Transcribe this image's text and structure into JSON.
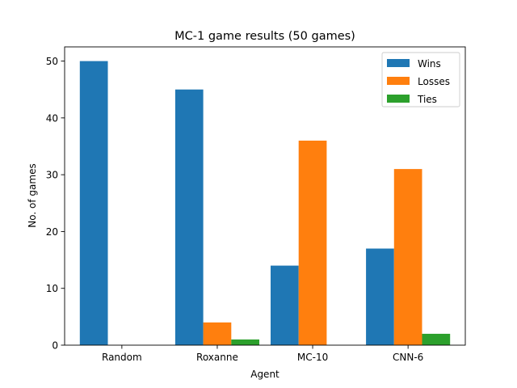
{
  "chart_data": {
    "type": "bar",
    "title": "MC-1 game results (50 games)",
    "xlabel": "Agent",
    "ylabel": "No. of games",
    "categories": [
      "Random",
      "Roxanne",
      "MC-10",
      "CNN-6"
    ],
    "series": [
      {
        "name": "Wins",
        "values": [
          50,
          45,
          14,
          17
        ],
        "color": "#1f77b4"
      },
      {
        "name": "Losses",
        "values": [
          0,
          4,
          36,
          31
        ],
        "color": "#ff7f0e"
      },
      {
        "name": "Ties",
        "values": [
          0,
          1,
          0,
          2
        ],
        "color": "#2ca02c"
      }
    ],
    "ylim": [
      0,
      52.5
    ],
    "yticks": [
      0,
      10,
      20,
      30,
      40,
      50
    ],
    "grid": false,
    "legend_position": "top-right"
  }
}
